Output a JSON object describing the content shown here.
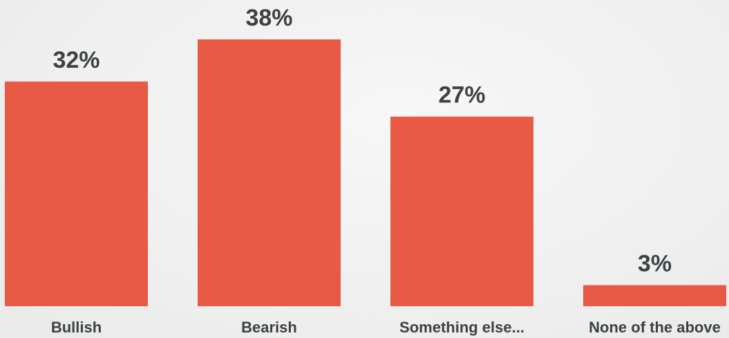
{
  "chart_data": {
    "type": "bar",
    "categories": [
      "Bullish",
      "Bearish",
      "Something else...",
      "None of the above"
    ],
    "values": [
      32,
      38,
      27,
      3
    ],
    "value_labels": [
      "32%",
      "38%",
      "27%",
      "3%"
    ],
    "unit": "%",
    "title": "",
    "xlabel": "",
    "ylabel": "",
    "ylim": [
      0,
      38
    ],
    "grid": false,
    "legend": "none",
    "bar_color": "#e85a46"
  }
}
